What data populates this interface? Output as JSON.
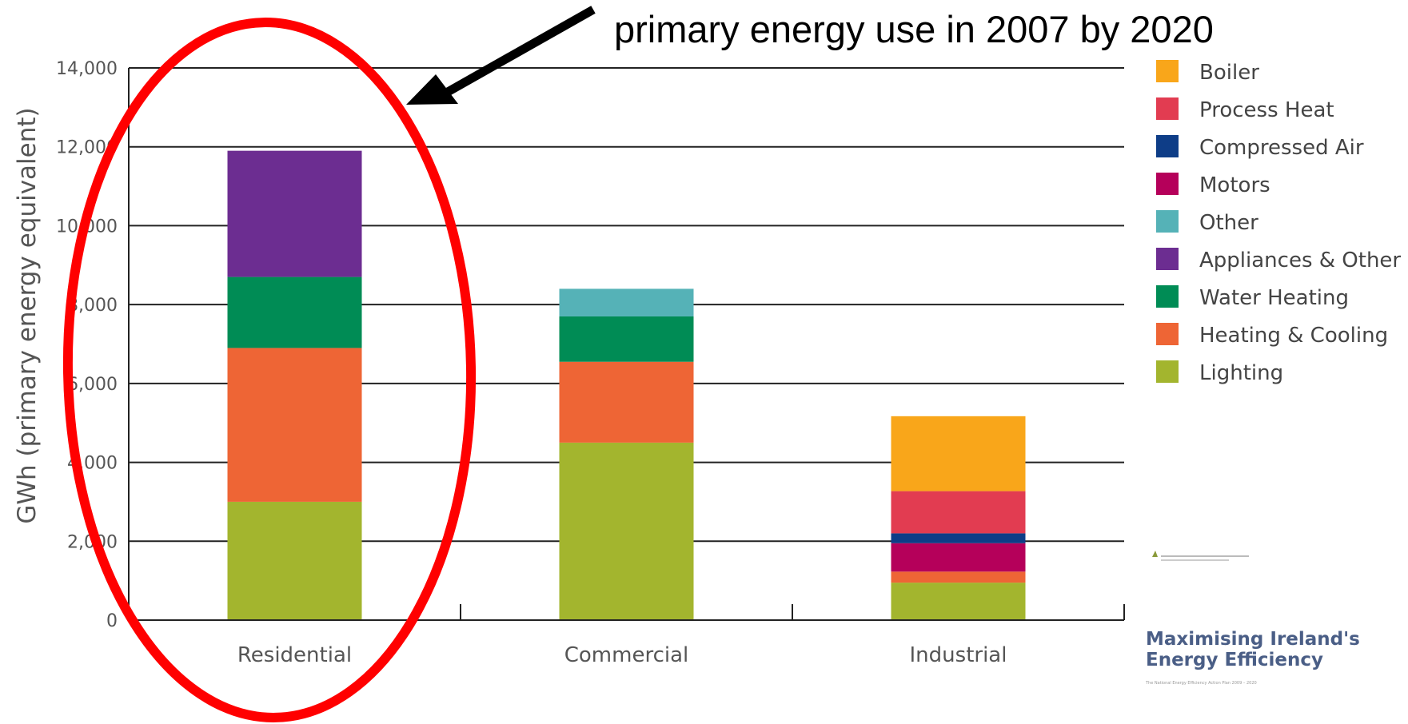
{
  "annotation": {
    "text": "primary energy use in 2007 by 2020"
  },
  "brand": {
    "line1": "Maximising Ireland's",
    "line2": "Energy Efficiency",
    "tagline": "The National Energy Efficiency Action Plan 2009 – 2020"
  },
  "chart_data": {
    "type": "bar",
    "stacked": true,
    "ylabel": "GWh (primary energy equivalent)",
    "ylim": [
      0,
      14000
    ],
    "yticks": [
      0,
      2000,
      4000,
      6000,
      8000,
      10000,
      12000,
      14000
    ],
    "ytick_labels": [
      "0",
      "2,000",
      "4,000",
      "6,000",
      "8,000",
      "10,000",
      "12,000",
      "14,000"
    ],
    "grid": true,
    "legend_position": "right",
    "categories": [
      "Residential",
      "Commercial",
      "Industrial"
    ],
    "series": [
      {
        "name": "Lighting",
        "color": "#a3b52e",
        "values": [
          3000,
          4500,
          950
        ]
      },
      {
        "name": "Heating & Cooling",
        "color": "#ee6535",
        "values": [
          3900,
          2050,
          280
        ]
      },
      {
        "name": "Water Heating",
        "color": "#008c55",
        "values": [
          1800,
          1150,
          0
        ]
      },
      {
        "name": "Appliances & Other",
        "color": "#6c2d91",
        "values": [
          3200,
          0,
          0
        ]
      },
      {
        "name": "Other",
        "color": "#55b2b7",
        "values": [
          0,
          700,
          0
        ]
      },
      {
        "name": "Motors",
        "color": "#b5005a",
        "values": [
          0,
          0,
          720
        ]
      },
      {
        "name": "Compressed Air",
        "color": "#0e3d87",
        "values": [
          0,
          0,
          250
        ]
      },
      {
        "name": "Process Heat",
        "color": "#e23c51",
        "values": [
          0,
          0,
          1070
        ]
      },
      {
        "name": "Boiler",
        "color": "#f9a61a",
        "values": [
          0,
          0,
          1900
        ]
      }
    ],
    "legend_order": [
      "Boiler",
      "Process Heat",
      "Compressed Air",
      "Motors",
      "Other",
      "Appliances & Other",
      "Water Heating",
      "Heating & Cooling",
      "Lighting"
    ],
    "highlight": {
      "category": "Residential",
      "shape": "ellipse",
      "color": "#ff0000"
    }
  }
}
